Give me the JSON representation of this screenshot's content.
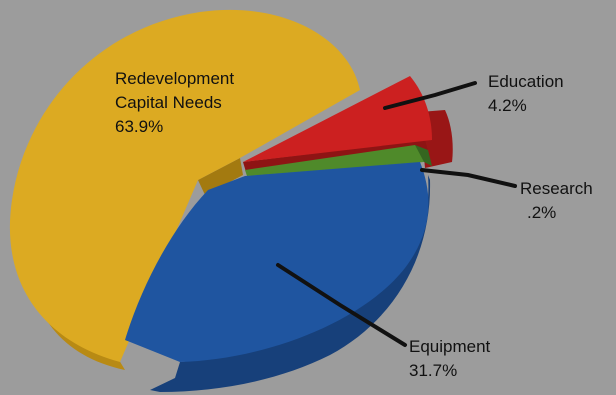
{
  "chart_data": {
    "type": "pie",
    "title": "",
    "slices": [
      {
        "label_lines": [
          "Redevelopment",
          "Capital Needs"
        ],
        "value_text": "63.9%",
        "value": 63.9,
        "color": "#dcaa22"
      },
      {
        "label_lines": [
          "Education"
        ],
        "value_text": "4.2%",
        "value": 4.2,
        "color": "#cc2020"
      },
      {
        "label_lines": [
          "Research"
        ],
        "value_text": ".2%",
        "value": 0.2,
        "color": "#4f8a2a"
      },
      {
        "label_lines": [
          "Equipment"
        ],
        "value_text": "31.7%",
        "value": 31.7,
        "color": "#1f55a0"
      }
    ],
    "legend": "none",
    "style": "3d exploded pie"
  },
  "background_color": "#9c9c9c"
}
